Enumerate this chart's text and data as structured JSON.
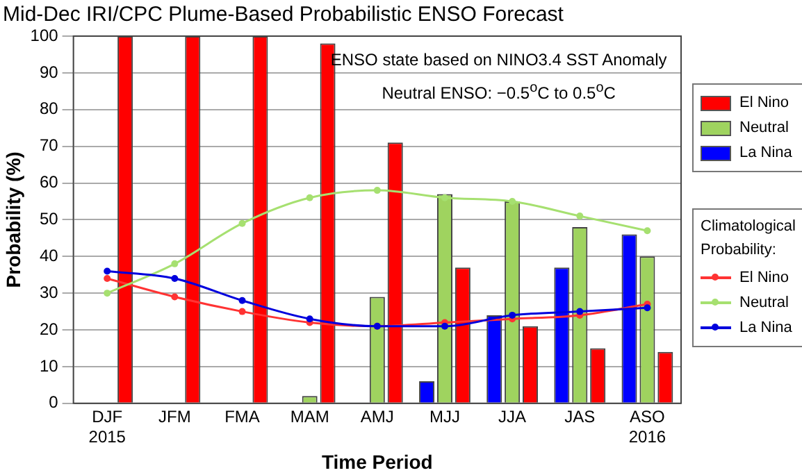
{
  "chart_data": {
    "type": "bar",
    "title": "Mid-Dec IRI/CPC Plume-Based Probabilistic ENSO Forecast",
    "xlabel": "Time Period",
    "ylabel": "Probability (%)",
    "categories": [
      "DJF\n2015",
      "JFM",
      "FMA",
      "MAM",
      "AMJ",
      "MJJ",
      "JJA",
      "JAS",
      "ASO\n2016"
    ],
    "series": [
      {
        "name": "La Nina",
        "color": "#0000ff",
        "values": [
          0,
          0,
          0,
          0,
          0,
          6,
          24,
          37,
          46
        ]
      },
      {
        "name": "Neutral",
        "color": "#9fd35f",
        "values": [
          0,
          0,
          0,
          2,
          29,
          57,
          55,
          48,
          40
        ]
      },
      {
        "name": "El Nino",
        "color": "#ff0000",
        "values": [
          100,
          100,
          100,
          98,
          71,
          37,
          21,
          15,
          14
        ]
      },
      {
        "name": "El Nino",
        "type": "line",
        "color": "#ff3333",
        "values": [
          34,
          29,
          25,
          22,
          21,
          22,
          23,
          24,
          27
        ]
      },
      {
        "name": "Neutral",
        "type": "line",
        "color": "#a6e070",
        "values": [
          30,
          38,
          49,
          56,
          58,
          56,
          55,
          51,
          47
        ]
      },
      {
        "name": "La Nina",
        "type": "line",
        "color": "#0000dd",
        "values": [
          36,
          34,
          28,
          23,
          21,
          21,
          24,
          25,
          26
        ]
      }
    ],
    "ylim": [
      0,
      100
    ],
    "yticks": [
      0,
      10,
      20,
      30,
      40,
      50,
      60,
      70,
      80,
      90,
      100
    ],
    "grid": "y",
    "legend": "right",
    "legend_title": "Climatological Probability:",
    "marker": "circle",
    "line_style": "solid",
    "annotations": [
      "ENSO state based on NINO3.4 SST Anomaly",
      "Neutral ENSO: −0.5$^{o}$C to 0.5$^{o}$C"
    ]
  }
}
